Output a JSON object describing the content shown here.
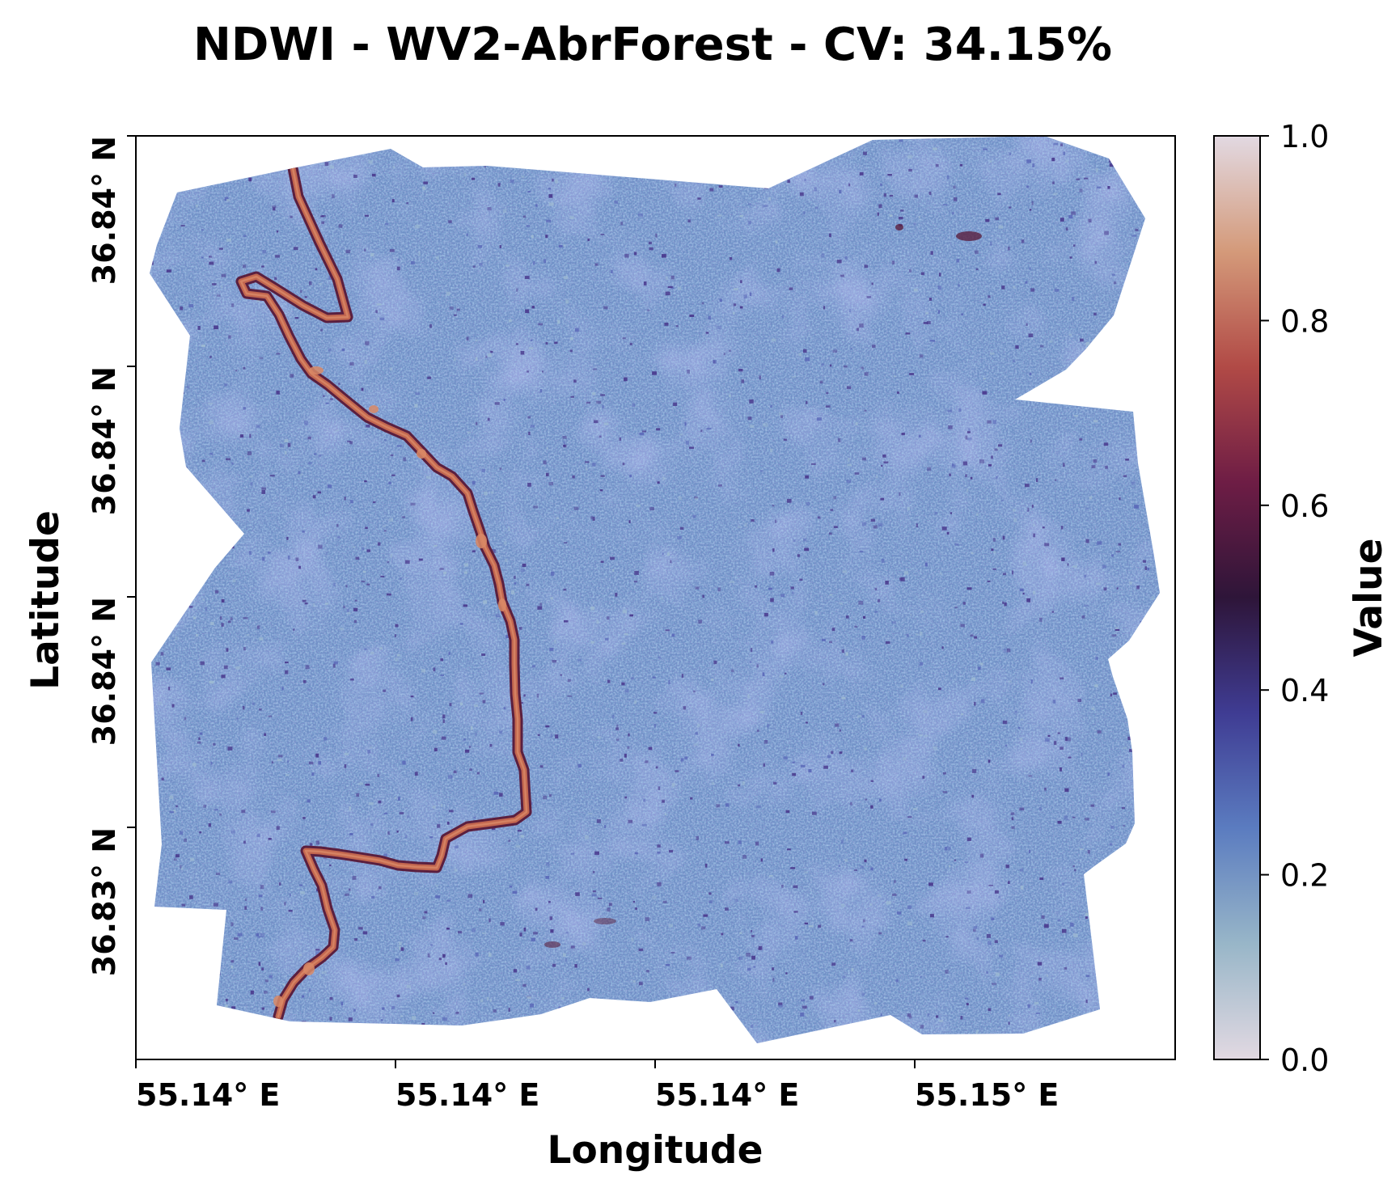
{
  "chart_data": {
    "type": "heatmap",
    "title": "NDWI - WV2-AbrForest - CV: 34.15%",
    "xlabel": "Longitude",
    "ylabel": "Latitude",
    "x_tick_labels": [
      "55.14° E",
      "55.14° E",
      "55.14° E",
      "55.15° E"
    ],
    "y_tick_labels": [
      "36.84° N",
      "36.84° N",
      "36.84° N",
      "36.83° N"
    ],
    "colorbar": {
      "label": "Value",
      "range": [
        0.0,
        1.0
      ],
      "tick_values": [
        0.0,
        0.2,
        0.4,
        0.6,
        0.8,
        1.0
      ],
      "tick_labels": [
        "0.0",
        "0.2",
        "0.4",
        "0.6",
        "0.8",
        "1.0"
      ],
      "colormap": "twilight_shifted (light grey-lilac → steel blue → indigo → near-black purple → maroon → salmon → light grey-lilac)"
    },
    "raster_description": {
      "background_value": 0.22,
      "background_value_range": [
        0.15,
        0.35
      ],
      "stream_value": 0.85,
      "stream_value_range": [
        0.6,
        0.95
      ]
    },
    "colors": {
      "background_light": "#9dbad3",
      "background_mid": "#6e90c6",
      "background_dark": "#5a68b8",
      "speckle": "#4a3a8e",
      "stream_dark": "#5a1f3f",
      "stream_light": "#c2664f",
      "stream_core": "#d98a66",
      "colorbar_stops": [
        "#e2d9e2",
        "#98b6c8",
        "#5b7cc0",
        "#3f3c93",
        "#2e1539",
        "#6e1d45",
        "#b14a46",
        "#d49a7a",
        "#e2d9e2"
      ]
    }
  }
}
